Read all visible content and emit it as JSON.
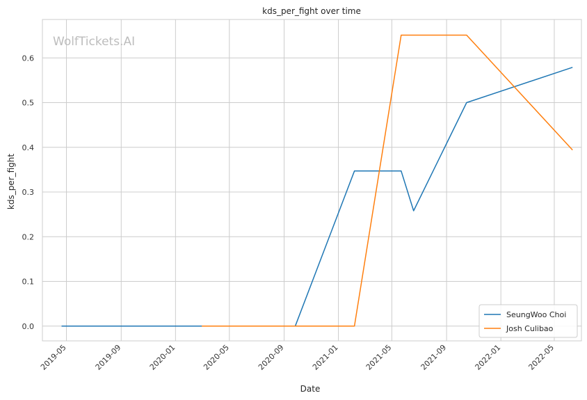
{
  "chart_data": {
    "type": "line",
    "title": "kds_per_fight over time",
    "xlabel": "Date",
    "ylabel": "kds_per_fight",
    "watermark": "WolfTickets.AI",
    "x_ticks": [
      "2019-05",
      "2019-09",
      "2020-01",
      "2020-05",
      "2020-09",
      "2021-01",
      "2021-05",
      "2021-09",
      "2022-01",
      "2022-05"
    ],
    "y_ticks": [
      "0.0",
      "0.1",
      "0.2",
      "0.3",
      "0.4",
      "0.5",
      "0.6"
    ],
    "xlim": [
      "2019-03-08",
      "2022-07-01"
    ],
    "ylim": [
      -0.033,
      0.686
    ],
    "grid": true,
    "legend_position": "lower right",
    "series": [
      {
        "name": "SeungWoo Choi",
        "color": "#1f77b4",
        "points": [
          {
            "x": "2019-04-20",
            "y": 0.0
          },
          {
            "x": "2020-09-26",
            "y": 0.0
          },
          {
            "x": "2021-02-06",
            "y": 0.347
          },
          {
            "x": "2021-05-22",
            "y": 0.347
          },
          {
            "x": "2021-06-19",
            "y": 0.258
          },
          {
            "x": "2021-10-16",
            "y": 0.5
          },
          {
            "x": "2022-06-11",
            "y": 0.579
          }
        ]
      },
      {
        "name": "Josh Culibao",
        "color": "#ff7f0e",
        "points": [
          {
            "x": "2020-02-29",
            "y": 0.0
          },
          {
            "x": "2021-02-06",
            "y": 0.0
          },
          {
            "x": "2021-05-22",
            "y": 0.651
          },
          {
            "x": "2021-10-16",
            "y": 0.651
          },
          {
            "x": "2022-06-11",
            "y": 0.394
          }
        ]
      }
    ]
  }
}
